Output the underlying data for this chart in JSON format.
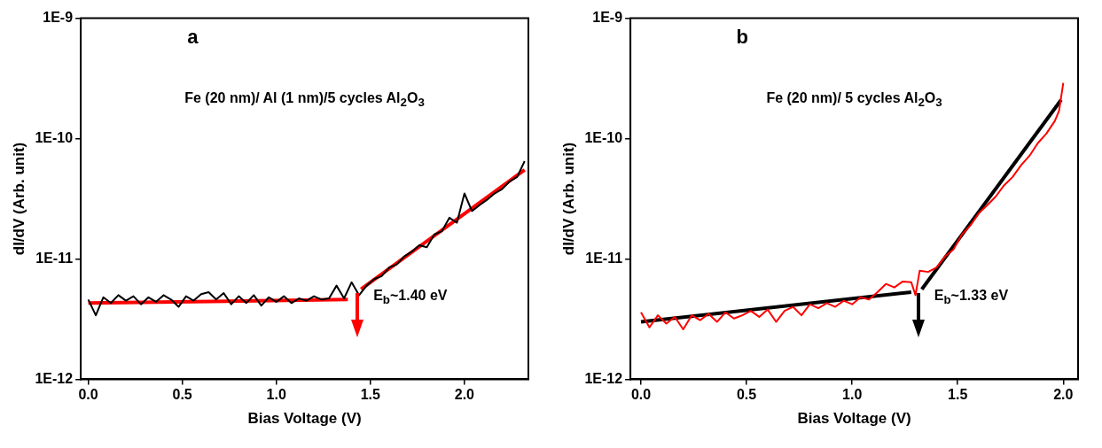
{
  "chart_data": [
    {
      "type": "line",
      "title": "a",
      "xlabel": "Bias Voltage (V)",
      "ylabel": "dI/dV (Arb. unit)",
      "log": "y",
      "grid": false,
      "legend": false,
      "marker": "none",
      "xlim": [
        -0.04,
        2.34
      ],
      "xticks": [
        {
          "value": 0,
          "label": "0.0"
        },
        {
          "value": 0.5,
          "label": "0.5"
        },
        {
          "value": 1,
          "label": "1.0"
        },
        {
          "value": 1.5,
          "label": "1.5"
        },
        {
          "value": 2,
          "label": "2.0"
        }
      ],
      "ylim": [
        1e-12,
        1e-09
      ],
      "yticks": [
        {
          "value": 1e-12,
          "label": "1E-12"
        },
        {
          "value": 1e-11,
          "label": "1E-11"
        },
        {
          "value": 1e-10,
          "label": "1E-10"
        },
        {
          "value": 1e-09,
          "label": "1E-9"
        }
      ],
      "annotations": [
        "Fe (20 nm)/ Al (1 nm)/5 cycles Al$_{2}$O$_{3}$",
        {
          "text": "E$_{b}$~1.40 eV",
          "x": 1.45,
          "y": 5.6e-12
        }
      ],
      "series": [
        {
          "color": "#000000",
          "x": [
            0,
            0.04,
            0.08,
            0.12,
            0.16,
            0.2,
            0.24,
            0.28,
            0.32,
            0.36,
            0.4,
            0.44,
            0.48,
            0.52,
            0.56,
            0.6,
            0.64,
            0.68,
            0.72,
            0.76,
            0.8,
            0.84,
            0.88,
            0.92,
            0.96,
            1,
            1.04,
            1.08,
            1.12,
            1.16,
            1.2,
            1.24,
            1.28,
            1.32,
            1.36,
            1.4,
            1.44,
            1.48,
            1.52,
            1.56,
            1.6,
            1.64,
            1.68,
            1.72,
            1.76,
            1.8,
            1.84,
            1.88,
            1.92,
            1.96,
            2,
            2.04,
            2.08,
            2.12,
            2.16,
            2.2,
            2.24,
            2.28,
            2.32
          ],
          "values": [
            4.6e-12,
            3.4e-12,
            4.8e-12,
            4.3e-12,
            5e-12,
            4.5e-12,
            4.9e-12,
            4.2e-12,
            4.8e-12,
            4.4e-12,
            5e-12,
            4.6e-12,
            4e-12,
            4.9e-12,
            4.5e-12,
            5.1e-12,
            5.3e-12,
            4.6e-12,
            5.2e-12,
            4.2e-12,
            4.9e-12,
            4.3e-12,
            5e-12,
            4.1e-12,
            4.8e-12,
            4.4e-12,
            4.9e-12,
            4.3e-12,
            4.7e-12,
            4.5e-12,
            4.9e-12,
            4.6e-12,
            4.7e-12,
            6e-12,
            4.7e-12,
            6.4e-12,
            5e-12,
            6e-12,
            6.8e-12,
            7.2e-12,
            8.5e-12,
            9e-12,
            1.05e-11,
            1.15e-11,
            1.3e-11,
            1.25e-11,
            1.6e-11,
            1.7e-11,
            2.2e-11,
            2e-11,
            3.5e-11,
            2.5e-11,
            2.8e-11,
            3.1e-11,
            3.5e-11,
            3.8e-11,
            4.4e-11,
            4.8e-11,
            6.5e-11
          ]
        },
        {
          "color": "#ff0000",
          "x": [
            0,
            1.38
          ],
          "values": [
            4.3e-12,
            4.6e-12
          ]
        },
        {
          "color": "#ff0000",
          "x": [
            1.45,
            2.32
          ],
          "values": [
            5.6e-12,
            5.5e-11
          ]
        }
      ]
    },
    {
      "type": "line",
      "title": "b",
      "xlabel": "Bias Voltage (V)",
      "ylabel": "dI/dV (Arb. unit)",
      "log": "y",
      "grid": false,
      "legend": false,
      "marker": "none",
      "xlim": [
        -0.05,
        2.07
      ],
      "xticks": [
        {
          "value": 0,
          "label": "0.0"
        },
        {
          "value": 0.5,
          "label": "0.5"
        },
        {
          "value": 1,
          "label": "1.0"
        },
        {
          "value": 1.5,
          "label": "1.5"
        },
        {
          "value": 2,
          "label": "2.0"
        }
      ],
      "ylim": [
        1e-12,
        1e-09
      ],
      "yticks": [
        {
          "value": 1e-12,
          "label": "1E-12"
        },
        {
          "value": 1e-11,
          "label": "1E-11"
        },
        {
          "value": 1e-10,
          "label": "1E-10"
        },
        {
          "value": 1e-09,
          "label": "1E-9"
        }
      ],
      "annotations": [
        "Fe (20 nm)/ 5 cycles Al$_{2}$O$_{3}$",
        {
          "text": "E$_{b}$~1.33 eV",
          "x": 1.33,
          "y": 5.6e-12
        }
      ],
      "series": [
        {
          "color": "#ff0000",
          "x": [
            0,
            0.04,
            0.08,
            0.12,
            0.16,
            0.2,
            0.24,
            0.28,
            0.32,
            0.36,
            0.4,
            0.44,
            0.48,
            0.52,
            0.56,
            0.6,
            0.64,
            0.68,
            0.72,
            0.76,
            0.8,
            0.84,
            0.88,
            0.92,
            0.96,
            1,
            1.04,
            1.08,
            1.12,
            1.16,
            1.2,
            1.24,
            1.28,
            1.3,
            1.32,
            1.36,
            1.4,
            1.44,
            1.48,
            1.52,
            1.56,
            1.6,
            1.64,
            1.68,
            1.72,
            1.76,
            1.8,
            1.84,
            1.88,
            1.92,
            1.96,
            1.98,
            2
          ],
          "values": [
            3.6e-12,
            2.7e-12,
            3.4e-12,
            2.9e-12,
            3.3e-12,
            2.6e-12,
            3.4e-12,
            3.1e-12,
            3.5e-12,
            3e-12,
            3.6e-12,
            3.2e-12,
            3.4e-12,
            3.7e-12,
            3.3e-12,
            3.8e-12,
            3e-12,
            3.7e-12,
            4e-12,
            3.4e-12,
            4.2e-12,
            3.9e-12,
            4.3e-12,
            4e-12,
            4.5e-12,
            4.2e-12,
            4.8e-12,
            4.6e-12,
            5.3e-12,
            6.2e-12,
            5.8e-12,
            6.5e-12,
            6.4e-12,
            5e-12,
            8e-12,
            7.8e-12,
            8.5e-12,
            1.05e-11,
            1.2e-11,
            1.6e-11,
            1.9e-11,
            2.4e-11,
            2.8e-11,
            3.3e-11,
            4.1e-11,
            4.8e-11,
            6e-11,
            7.2e-11,
            9.2e-11,
            1.1e-10,
            1.4e-10,
            1.7e-10,
            2.9e-10
          ]
        },
        {
          "color": "#000000",
          "x": [
            0,
            1.28
          ],
          "values": [
            3e-12,
            5.3e-12
          ]
        },
        {
          "color": "#000000",
          "x": [
            1.33,
            1.99
          ],
          "values": [
            5.6e-12,
            2.1e-10
          ]
        }
      ]
    }
  ]
}
